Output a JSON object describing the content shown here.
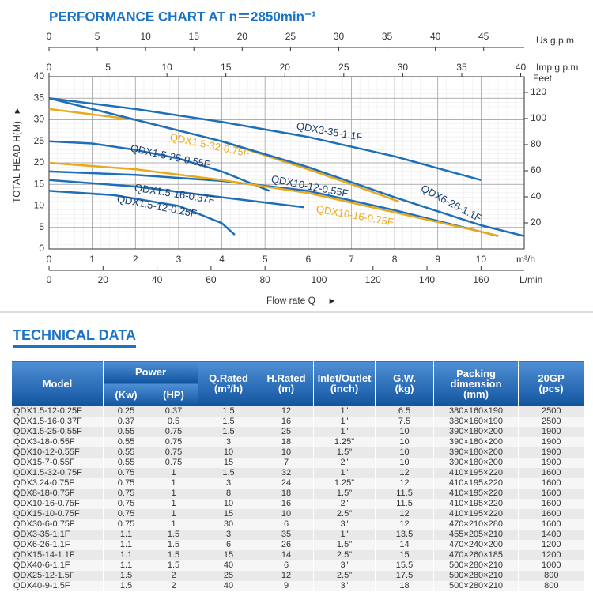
{
  "chart_data": {
    "type": "line",
    "title": "PERFORMANCE CHART AT n＝2850min⁻¹",
    "x_label": "Flow rate Q",
    "x_unit": "m³/h",
    "y_label": "TOTAL HEAD H(M)",
    "xlim": [
      0,
      11
    ],
    "xticks": [
      0,
      1,
      2,
      3,
      4,
      5,
      6,
      7,
      8,
      9,
      10
    ],
    "ylim": [
      0,
      40
    ],
    "yticks": [
      0,
      5,
      10,
      15,
      20,
      25,
      30,
      35,
      40
    ],
    "grid": true,
    "x_lpm": {
      "label": "L/min",
      "lim": [
        0,
        176
      ],
      "ticks": [
        0,
        20,
        40,
        60,
        80,
        100,
        120,
        140,
        160
      ]
    },
    "x_usgpm": {
      "label": "Us g.p.m",
      "lim": [
        0,
        49.2
      ],
      "ticks": [
        0,
        5,
        10,
        15,
        20,
        25,
        30,
        35,
        40,
        45
      ]
    },
    "x_impgpm": {
      "label": "Imp g.p.m",
      "lim": [
        0,
        40.3
      ],
      "ticks": [
        0,
        5,
        10,
        15,
        20,
        25,
        30,
        35,
        40
      ]
    },
    "y_feet": {
      "label": "Feet",
      "lim": [
        0,
        132.1
      ],
      "ticks": [
        20,
        40,
        60,
        80,
        100,
        120
      ]
    },
    "series": [
      {
        "name": "QDX3-35-1.1F",
        "color": "#1f6fb8",
        "x": [
          0,
          2,
          4,
          6,
          8,
          10
        ],
        "values": [
          35,
          32.5,
          29.5,
          26,
          21.5,
          16
        ]
      },
      {
        "name": "QDX1.5-32-0.75F",
        "color": "#e8a91c",
        "x": [
          0,
          2,
          4,
          6,
          7,
          8.1
        ],
        "values": [
          32.5,
          30,
          25,
          18.5,
          15,
          11
        ]
      },
      {
        "name": "QDX1.5-25-0.55F",
        "color": "#1f6fb8",
        "x": [
          0,
          1,
          2,
          3,
          4,
          5.1
        ],
        "values": [
          25,
          24.5,
          23,
          21,
          18,
          13.5
        ]
      },
      {
        "name": "QDX6-26-1.1F",
        "color": "#1f6fb8",
        "x": [
          0,
          2,
          4,
          6,
          8,
          10,
          11
        ],
        "values": [
          35,
          30,
          25,
          19,
          12,
          5.5,
          3
        ]
      },
      {
        "name": "QDX10-12-0.55F",
        "color": "#1f6fb8",
        "x": [
          0,
          2,
          4,
          6,
          8,
          10,
          10.4
        ],
        "values": [
          18,
          17.2,
          15.8,
          13.5,
          9,
          4,
          3
        ]
      },
      {
        "name": "QDX10-16-0.75F",
        "color": "#e8a91c",
        "x": [
          0,
          2,
          4,
          6,
          8,
          10,
          10.4
        ],
        "values": [
          20,
          18.5,
          16,
          13,
          8.5,
          4,
          3
        ]
      },
      {
        "name": "QDX1.5-16-0.37F",
        "color": "#1f6fb8",
        "x": [
          0,
          2,
          4,
          5.9
        ],
        "values": [
          16,
          14.5,
          12,
          9.7
        ]
      },
      {
        "name": "QDX1.5-12-0.25F",
        "color": "#1f6fb8",
        "x": [
          0,
          1.5,
          3,
          4,
          4.3
        ],
        "values": [
          13.5,
          12.5,
          10,
          6,
          3.3
        ]
      }
    ]
  },
  "table": {
    "title": "TECHNICAL DATA",
    "header": [
      "Model",
      "Power",
      "Q.Rated",
      "H.Rated",
      "Inlet/Outlet",
      "G.W.",
      "Packing dimension",
      "20GP"
    ],
    "units": [
      "(Kw)",
      "(HP)",
      "(m³/h)",
      "(m)",
      "(inch)",
      "(kg)",
      "(mm)",
      "(pcs)"
    ],
    "rows": [
      [
        "QDX1.5-12-0.25F",
        "0.25",
        "0.37",
        "1.5",
        "12",
        "1\"",
        "6.5",
        "380×160×190",
        "2500"
      ],
      [
        "QDX1.5-16-0.37F",
        "0.37",
        "0.5",
        "1.5",
        "16",
        "1\"",
        "7.5",
        "380×160×190",
        "2500"
      ],
      [
        "QDX1.5-25-0.55F",
        "0.55",
        "0.75",
        "1.5",
        "25",
        "1\"",
        "10",
        "390×180×200",
        "1900"
      ],
      [
        "QDX3-18-0.55F",
        "0.55",
        "0.75",
        "3",
        "18",
        "1.25\"",
        "10",
        "390×180×200",
        "1900"
      ],
      [
        "QDX10-12-0.55F",
        "0.55",
        "0.75",
        "10",
        "10",
        "1.5\"",
        "10",
        "390×180×200",
        "1900"
      ],
      [
        "QDX15-7-0.55F",
        "0.55",
        "0.75",
        "15",
        "7",
        "2\"",
        "10",
        "390×180×200",
        "1900"
      ],
      [
        "QDX1.5-32-0.75F",
        "0.75",
        "1",
        "1.5",
        "32",
        "1\"",
        "12",
        "410×195×220",
        "1600"
      ],
      [
        "QDX3.24-0.75F",
        "0.75",
        "1",
        "3",
        "24",
        "1.25\"",
        "12",
        "410×195×220",
        "1600"
      ],
      [
        "QDX8-18-0.75F",
        "0.75",
        "1",
        "8",
        "18",
        "1.5\"",
        "11.5",
        "410×195×220",
        "1600"
      ],
      [
        "QDX10-16-0.75F",
        "0.75",
        "1",
        "10",
        "16",
        "2\"",
        "11.5",
        "410×195×220",
        "1600"
      ],
      [
        "QDX15-10-0.75F",
        "0.75",
        "1",
        "15",
        "10",
        "2.5\"",
        "12",
        "410×195×220",
        "1600"
      ],
      [
        "QDX30-6-0.75F",
        "0.75",
        "1",
        "30",
        "6",
        "3\"",
        "12",
        "470×210×280",
        "1600"
      ],
      [
        "QDX3-35-1.1F",
        "1.1",
        "1.5",
        "3",
        "35",
        "1\"",
        "13.5",
        "455×205×210",
        "1400"
      ],
      [
        "QDX6-26-1.1F",
        "1.1",
        "1.5",
        "6",
        "26",
        "1.5\"",
        "14",
        "470×240×200",
        "1200"
      ],
      [
        "QDX15-14-1.1F",
        "1.1",
        "1.5",
        "15",
        "14",
        "2.5\"",
        "15",
        "470×260×185",
        "1200"
      ],
      [
        "QDX40-6-1.1F",
        "1.1",
        "1.5",
        "40",
        "6",
        "3\"",
        "15.5",
        "500×280×210",
        "1000"
      ],
      [
        "QDX25-12-1.5F",
        "1.5",
        "2",
        "25",
        "12",
        "2.5\"",
        "17.5",
        "500×280×210",
        "800"
      ],
      [
        "QDX40-9-1.5F",
        "1.5",
        "2",
        "40",
        "9",
        "3\"",
        "18",
        "500×280×210",
        "800"
      ]
    ]
  }
}
